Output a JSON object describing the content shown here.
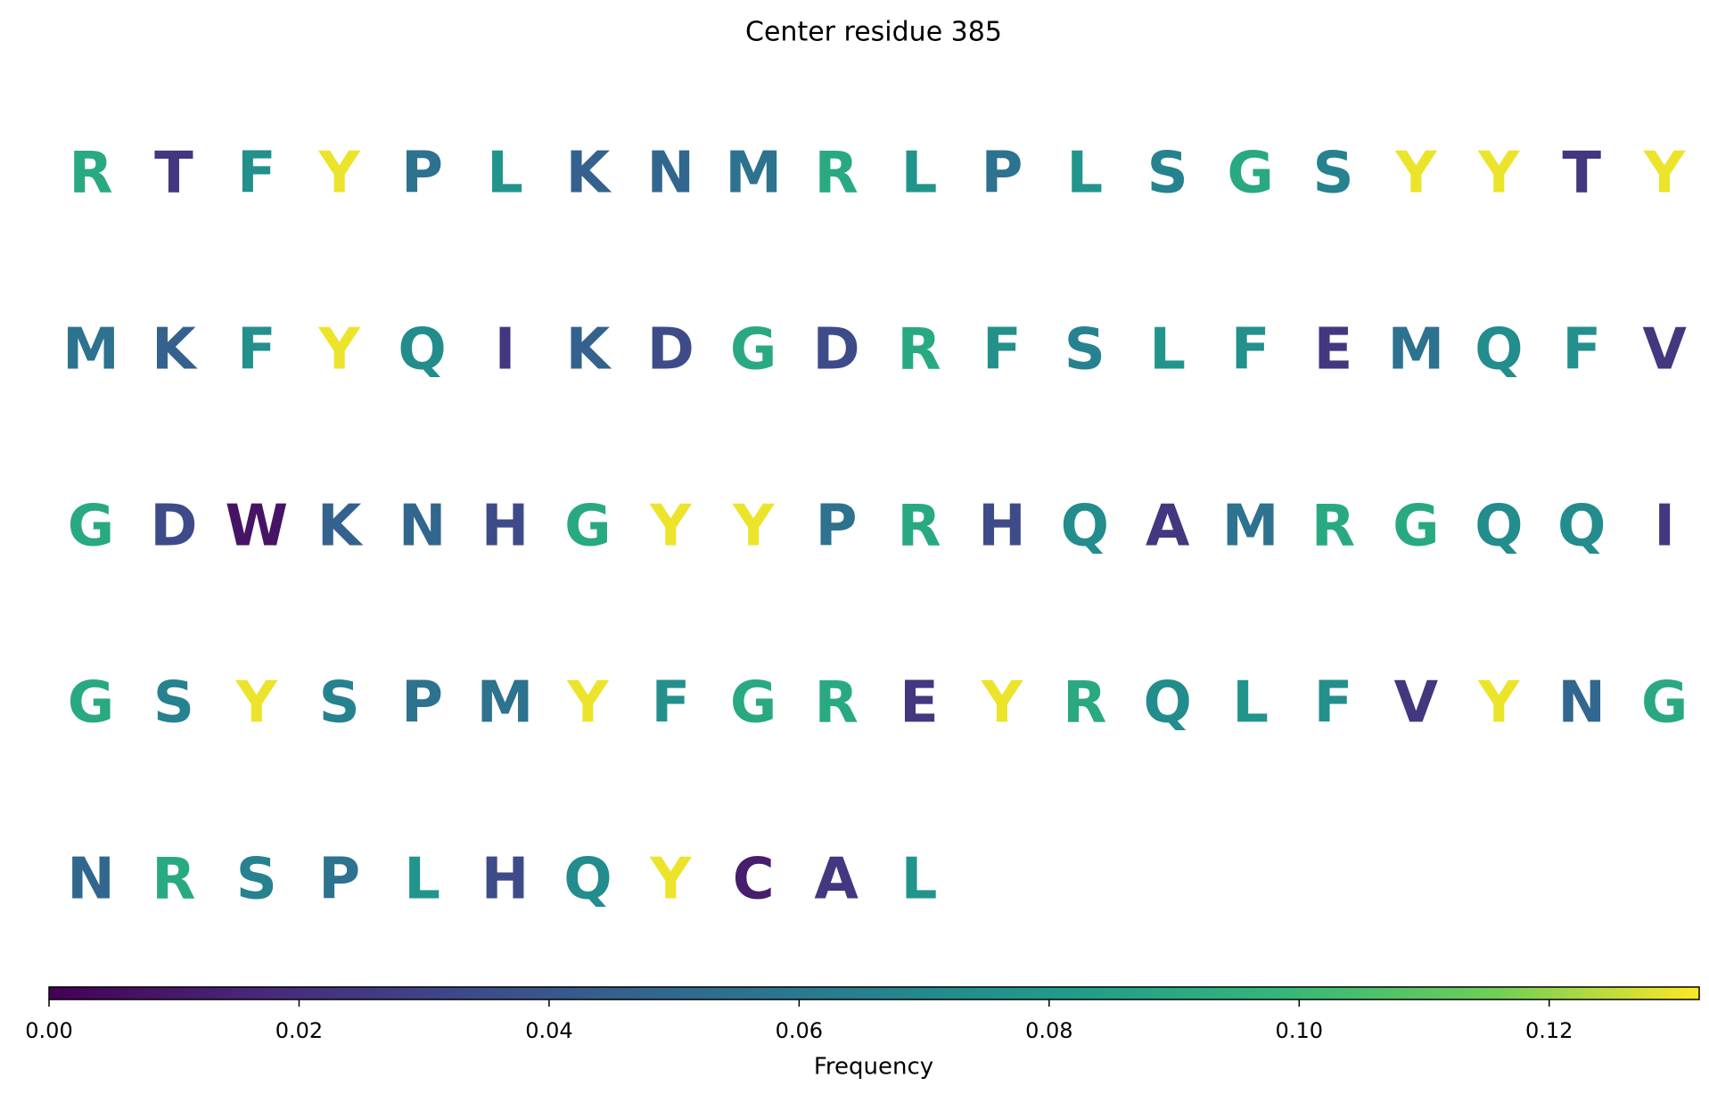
{
  "chart_data": {
    "type": "letter-grid",
    "title": "Center residue 385",
    "colormap": "viridis",
    "letters": [
      "R",
      "T",
      "F",
      "Y",
      "P",
      "L",
      "K",
      "N",
      "M",
      "R",
      "L",
      "P",
      "L",
      "S",
      "G",
      "S",
      "Y",
      "Y",
      "T",
      "Y",
      "M",
      "K",
      "F",
      "Y",
      "Q",
      "I",
      "K",
      "D",
      "G",
      "D",
      "R",
      "F",
      "S",
      "L",
      "F",
      "E",
      "M",
      "Q",
      "F",
      "V",
      "G",
      "D",
      "W",
      "K",
      "N",
      "H",
      "G",
      "Y",
      "Y",
      "P",
      "R",
      "H",
      "Q",
      "A",
      "M",
      "R",
      "G",
      "Q",
      "Q",
      "I",
      "G",
      "S",
      "Y",
      "S",
      "P",
      "M",
      "Y",
      "F",
      "G",
      "R",
      "E",
      "Y",
      "R",
      "Q",
      "L",
      "F",
      "V",
      "Y",
      "N",
      "G",
      "N",
      "R",
      "S",
      "P",
      "L",
      "H",
      "Q",
      "Y",
      "C",
      "A",
      "L"
    ],
    "values": [
      0.09,
      0.024,
      0.074,
      0.13,
      0.056,
      0.077,
      0.046,
      0.049,
      0.056,
      0.09,
      0.077,
      0.056,
      0.077,
      0.066,
      0.09,
      0.066,
      0.13,
      0.13,
      0.024,
      0.13,
      0.056,
      0.046,
      0.074,
      0.13,
      0.072,
      0.024,
      0.046,
      0.034,
      0.09,
      0.034,
      0.09,
      0.074,
      0.066,
      0.077,
      0.074,
      0.024,
      0.056,
      0.072,
      0.074,
      0.024,
      0.09,
      0.034,
      0.008,
      0.046,
      0.049,
      0.034,
      0.09,
      0.13,
      0.13,
      0.056,
      0.09,
      0.034,
      0.072,
      0.024,
      0.056,
      0.09,
      0.09,
      0.072,
      0.072,
      0.024,
      0.09,
      0.066,
      0.13,
      0.066,
      0.056,
      0.056,
      0.13,
      0.074,
      0.09,
      0.09,
      0.024,
      0.13,
      0.09,
      0.072,
      0.077,
      0.074,
      0.024,
      0.13,
      0.049,
      0.09,
      0.049,
      0.09,
      0.066,
      0.056,
      0.077,
      0.034,
      0.072,
      0.13,
      0.012,
      0.024,
      0.077
    ],
    "clim": [
      0,
      0.132
    ],
    "cticks": [
      {
        "value": 0,
        "label": "0.00"
      },
      0.02,
      0.04,
      0.06,
      0.08,
      {
        "value": 0.1,
        "label": "0.10"
      },
      0.12
    ],
    "colorbar_label": "Frequency"
  }
}
